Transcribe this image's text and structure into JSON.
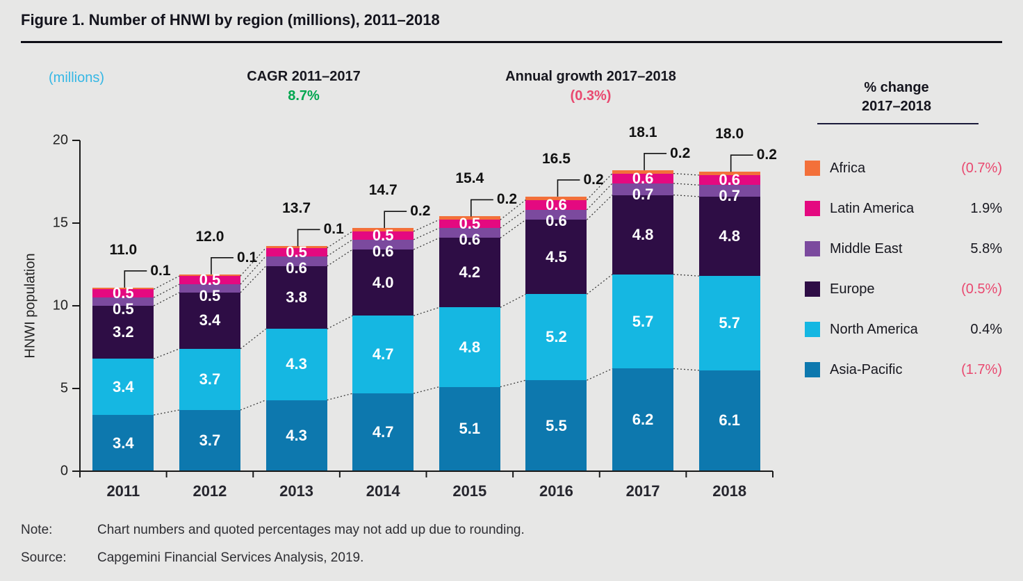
{
  "header": {
    "title": "Figure 1. Number of HNWI by region (millions), 2011–2018",
    "unit_label": "(millions)",
    "cagr_label": "CAGR 2011–2017",
    "cagr_value": "8.7%",
    "growth_label": "Annual growth 2017–2018",
    "growth_value": "(0.3%)"
  },
  "legend": {
    "title_line1": "% change",
    "title_line2": "2017–2018",
    "items": [
      {
        "label": "Africa",
        "pct": "(0.7%)",
        "negative": true,
        "color": "#f3703a"
      },
      {
        "label": "Latin America",
        "pct": "1.9%",
        "negative": false,
        "color": "#e40980"
      },
      {
        "label": "Middle East",
        "pct": "5.8%",
        "negative": false,
        "color": "#7b4a9e"
      },
      {
        "label": "Europe",
        "pct": "(0.5%)",
        "negative": true,
        "color": "#2e0d45"
      },
      {
        "label": "North America",
        "pct": "0.4%",
        "negative": false,
        "color": "#15b7e2"
      },
      {
        "label": "Asia-Pacific",
        "pct": "(1.7%)",
        "negative": true,
        "color": "#0d78ae"
      }
    ]
  },
  "chart_data": {
    "type": "bar",
    "stacked": true,
    "title": "Number of HNWI by region (millions), 2011–2018",
    "ylabel": "HNWI population",
    "xlabel": "",
    "ylim": [
      0,
      20
    ],
    "yticks": [
      0,
      5,
      10,
      15,
      20
    ],
    "grid": false,
    "legend_position": "right",
    "categories": [
      "2011",
      "2012",
      "2013",
      "2014",
      "2015",
      "2016",
      "2017",
      "2018"
    ],
    "total_labels": [
      "11.0",
      "12.0",
      "13.7",
      "14.7",
      "15.4",
      "16.5",
      "18.1",
      "18.0"
    ],
    "series": [
      {
        "name": "Asia-Pacific",
        "color": "#0d78ae",
        "values": [
          3.4,
          3.7,
          4.3,
          4.7,
          5.1,
          5.5,
          6.2,
          6.1
        ]
      },
      {
        "name": "North America",
        "color": "#15b7e2",
        "values": [
          3.4,
          3.7,
          4.3,
          4.7,
          4.8,
          5.2,
          5.7,
          5.7
        ]
      },
      {
        "name": "Europe",
        "color": "#2e0d45",
        "values": [
          3.2,
          3.4,
          3.8,
          4.0,
          4.2,
          4.5,
          4.8,
          4.8
        ]
      },
      {
        "name": "Middle East",
        "color": "#7b4a9e",
        "values": [
          0.5,
          0.5,
          0.6,
          0.6,
          0.6,
          0.6,
          0.7,
          0.7
        ]
      },
      {
        "name": "Latin America",
        "color": "#e40980",
        "values": [
          0.5,
          0.5,
          0.5,
          0.5,
          0.5,
          0.6,
          0.6,
          0.6
        ]
      },
      {
        "name": "Africa",
        "color": "#f3703a",
        "values": [
          0.1,
          0.1,
          0.1,
          0.2,
          0.2,
          0.2,
          0.2,
          0.2
        ],
        "label_as_callout": true
      }
    ]
  },
  "footer": {
    "note_label": "Note:",
    "note_text": "Chart numbers and quoted percentages may not add up due to rounding.",
    "source_label": "Source:",
    "source_text": "Capgemini Financial Services Analysis, 2019."
  }
}
